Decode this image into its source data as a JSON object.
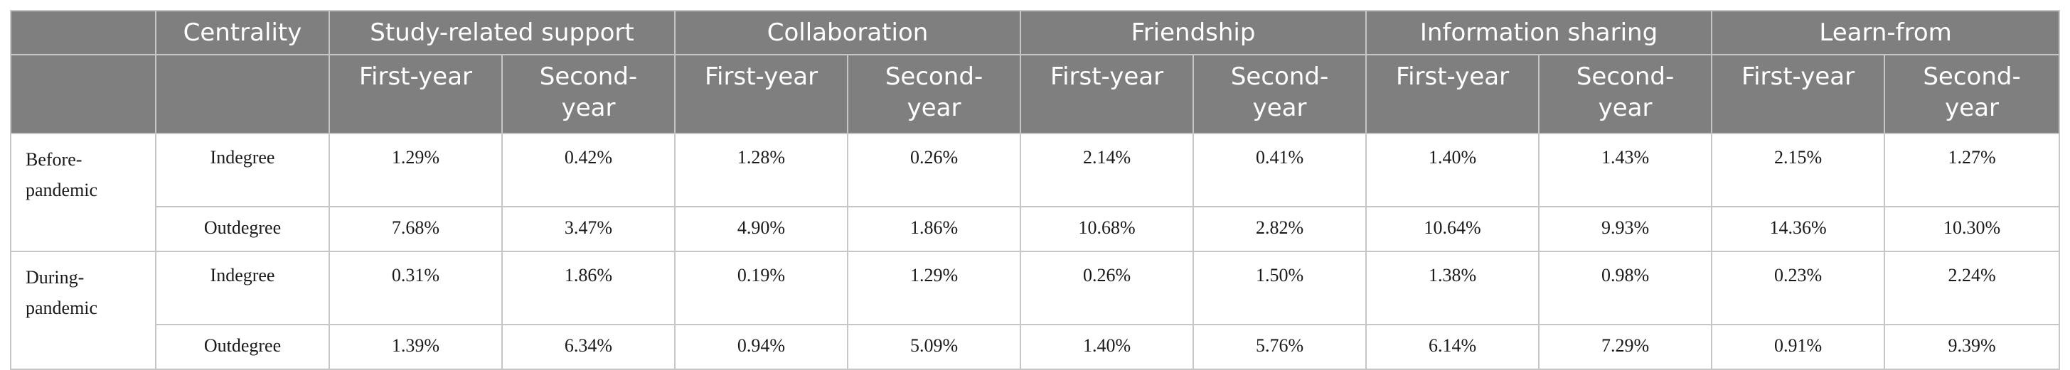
{
  "header": {
    "corner": "",
    "centrality": "Centrality",
    "groups": [
      "Study-related support",
      "Collaboration",
      "Friendship",
      "Information sharing",
      "Learn-from"
    ],
    "first_year": "First-year",
    "second_year_line1": "Second-",
    "second_year_line2": "year"
  },
  "rows": [
    {
      "period_line1": "Before-",
      "period_line2": "pandemic",
      "measure": "Indegree",
      "values": [
        "1.29%",
        "0.42%",
        "1.28%",
        "0.26%",
        "2.14%",
        "0.41%",
        "1.40%",
        "1.43%",
        "2.15%",
        "1.27%"
      ]
    },
    {
      "measure": "Outdegree",
      "values": [
        "7.68%",
        "3.47%",
        "4.90%",
        "1.86%",
        "10.68%",
        "2.82%",
        "10.64%",
        "9.93%",
        "14.36%",
        "10.30%"
      ]
    },
    {
      "period_line1": "During-",
      "period_line2": "pandemic",
      "measure": "Indegree",
      "values": [
        "0.31%",
        "1.86%",
        "0.19%",
        "1.29%",
        "0.26%",
        "1.50%",
        "1.38%",
        "0.98%",
        "0.23%",
        "2.24%"
      ]
    },
    {
      "measure": "Outdegree",
      "values": [
        "1.39%",
        "6.34%",
        "0.94%",
        "5.09%",
        "1.40%",
        "5.76%",
        "6.14%",
        "7.29%",
        "0.91%",
        "9.39%"
      ]
    }
  ]
}
